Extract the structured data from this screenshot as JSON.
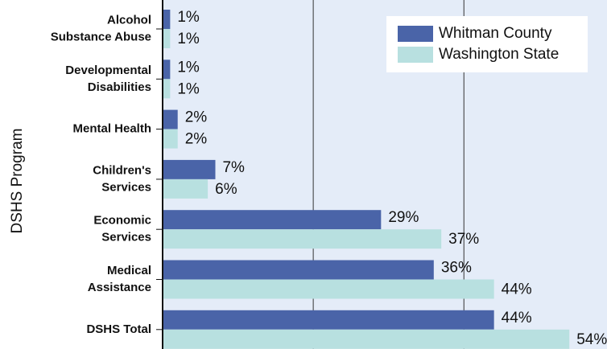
{
  "chart_data": {
    "type": "bar",
    "orientation": "horizontal",
    "y_axis_label": "DSHS Program",
    "categories": [
      [
        "Alcohol",
        "Substance Abuse"
      ],
      [
        "Developmental",
        "Disabilities"
      ],
      [
        "Mental Health"
      ],
      [
        "Children's",
        "Services"
      ],
      [
        "Economic",
        "Services"
      ],
      [
        "Medical",
        "Assistance"
      ],
      [
        "DSHS Total"
      ]
    ],
    "series": [
      {
        "name": "Whitman County",
        "color": "#4a64a8",
        "values": [
          1,
          1,
          2,
          7,
          29,
          36,
          44
        ],
        "value_labels": [
          "1%",
          "1%",
          "2%",
          "7%",
          "29%",
          "36%",
          "44%"
        ]
      },
      {
        "name": "Washington State",
        "color": "#b8e0e0",
        "values": [
          1,
          1,
          2,
          6,
          37,
          44,
          54
        ],
        "value_labels": [
          "1%",
          "1%",
          "2%",
          "6%",
          "37%",
          "44%",
          "54%"
        ]
      }
    ],
    "xlim": [
      0,
      59
    ],
    "xticks": [
      0,
      20,
      40
    ],
    "grid": true,
    "legend": "top-right"
  }
}
